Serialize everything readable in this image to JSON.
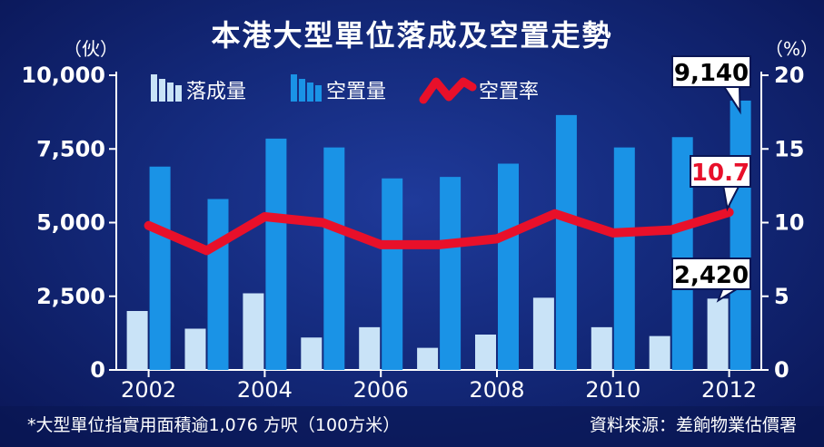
{
  "title": "本港大型單位落成及空置走勢",
  "left_unit": "（伙）",
  "right_unit": "（%）",
  "footnote": "*大型單位指實用面積逾1,076 方呎（100方米）",
  "source": "資料來源：差餉物業估價署",
  "colors": {
    "completion": "#c9e3f7",
    "vacancy": "#1a93e6",
    "rate": "#e8102a",
    "background": "#142a7c"
  },
  "chart_data": {
    "type": "bar",
    "title": "本港大型單位落成及空置走勢",
    "years": [
      2002,
      2003,
      2004,
      2005,
      2006,
      2007,
      2008,
      2009,
      2010,
      2011,
      2012
    ],
    "x_tick_labels": [
      "2002",
      "2004",
      "2006",
      "2008",
      "2010",
      "2012"
    ],
    "left_ticks": [
      "10,000",
      "7,500",
      "5,000",
      "2,500",
      "0"
    ],
    "right_ticks": [
      "20",
      "15",
      "10",
      "5",
      "0"
    ],
    "left_ylim": [
      0,
      10000
    ],
    "right_ylim": [
      0,
      20
    ],
    "legend": [
      "落成量",
      "空置量",
      "空置率"
    ],
    "legend_position": "top-left",
    "series": [
      {
        "name": "落成量",
        "axis": "left",
        "type": "bar",
        "values": [
          2000,
          1400,
          2600,
          1100,
          1450,
          750,
          1200,
          2450,
          1450,
          1150,
          2420
        ]
      },
      {
        "name": "空置量",
        "axis": "left",
        "type": "bar",
        "values": [
          6900,
          5800,
          7850,
          7550,
          6500,
          6550,
          7000,
          8650,
          7550,
          7900,
          9140
        ]
      },
      {
        "name": "空置率",
        "axis": "right",
        "type": "line",
        "values": [
          9.8,
          8.1,
          10.4,
          10.0,
          8.5,
          8.5,
          8.9,
          10.6,
          9.3,
          9.5,
          10.7
        ]
      }
    ],
    "annotations": [
      {
        "label": "9,140",
        "series": "空置量",
        "year": 2012,
        "color": "#000000"
      },
      {
        "label": "10.7",
        "series": "空置率",
        "year": 2012,
        "color": "#e8102a"
      },
      {
        "label": "2,420",
        "series": "落成量",
        "year": 2012,
        "color": "#000000"
      }
    ]
  }
}
